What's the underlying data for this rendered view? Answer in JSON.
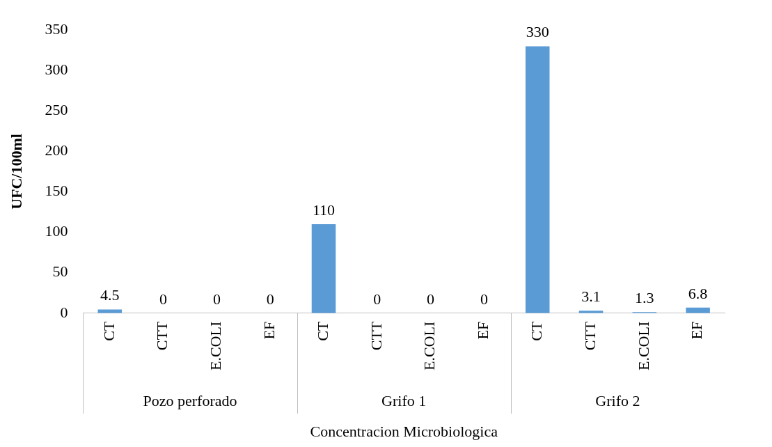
{
  "chart_data": {
    "type": "bar",
    "xlabel": "Concentracion Microbiologica",
    "ylabel": "UFC/100ml",
    "categories": [
      "CT",
      "CTT",
      "E.COLI",
      "EF",
      "CT",
      "CTT",
      "E.COLI",
      "EF",
      "CT",
      "CTT",
      "E.COLI",
      "EF"
    ],
    "values": [
      4.5,
      0,
      0,
      0,
      110,
      0,
      0,
      0,
      330,
      3.1,
      1.3,
      6.8
    ],
    "color": "#5b9bd5",
    "ylim": [
      0,
      350
    ],
    "yticks": [
      0,
      50,
      100,
      150,
      200,
      250,
      300,
      350
    ],
    "grid": false,
    "legend": false,
    "data_labels": true,
    "annotations": [
      "Pozo perforado",
      "Grifo 1",
      "Grifo 2"
    ]
  }
}
